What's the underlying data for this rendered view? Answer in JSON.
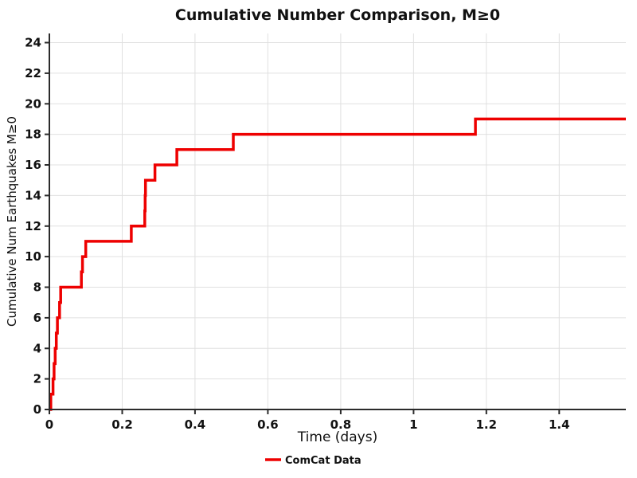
{
  "title": "Cumulative Number Comparison, M≥0",
  "x_axis": {
    "label": "Time (days)",
    "ticks": [
      0,
      0.2,
      0.4,
      0.6,
      0.8,
      1,
      1.2,
      1.4
    ],
    "tick_labels": [
      "0",
      "0.2",
      "0.4",
      "0.6",
      "0.8",
      "1",
      "1.2",
      "1.4"
    ],
    "range": [
      0,
      1.583
    ]
  },
  "y_axis": {
    "label": "Cumulative Num Earthquakes M≥0",
    "ticks": [
      0,
      2,
      4,
      6,
      8,
      10,
      12,
      14,
      16,
      18,
      20,
      22,
      24
    ],
    "tick_labels": [
      "0",
      "2",
      "4",
      "6",
      "8",
      "10",
      "12",
      "14",
      "16",
      "18",
      "20",
      "22",
      "24"
    ],
    "range": [
      0,
      24.6
    ]
  },
  "legend": {
    "position": "bottom-center",
    "entries": [
      {
        "label": "ComCat Data",
        "color": "#ee0000"
      }
    ]
  },
  "colors": {
    "line": "#ee0000",
    "grid": "#e0e0e0",
    "axis": "#2b2b2b",
    "text": "#111111",
    "background": "#ffffff"
  },
  "chart_data": {
    "type": "line",
    "subtype": "cumulative-step",
    "title": "Cumulative Number Comparison, M≥0",
    "xlabel": "Time (days)",
    "ylabel": "Cumulative Num Earthquakes M≥0",
    "xlim": [
      0,
      1.583
    ],
    "ylim": [
      0,
      24.6
    ],
    "grid": true,
    "legend_position": "bottom-center",
    "x_end": 1.583,
    "series": [
      {
        "name": "ComCat Data",
        "color": "#ee0000",
        "step": "post",
        "events_time_days": [
          0.004,
          0.01,
          0.013,
          0.016,
          0.019,
          0.022,
          0.028,
          0.031,
          0.088,
          0.091,
          0.1,
          0.225,
          0.262,
          0.263,
          0.264,
          0.29,
          0.35,
          0.505,
          1.17
        ],
        "cumulative_counts": [
          1,
          2,
          3,
          4,
          5,
          6,
          7,
          8,
          9,
          10,
          11,
          12,
          13,
          14,
          15,
          16,
          17,
          18,
          19
        ]
      }
    ]
  }
}
